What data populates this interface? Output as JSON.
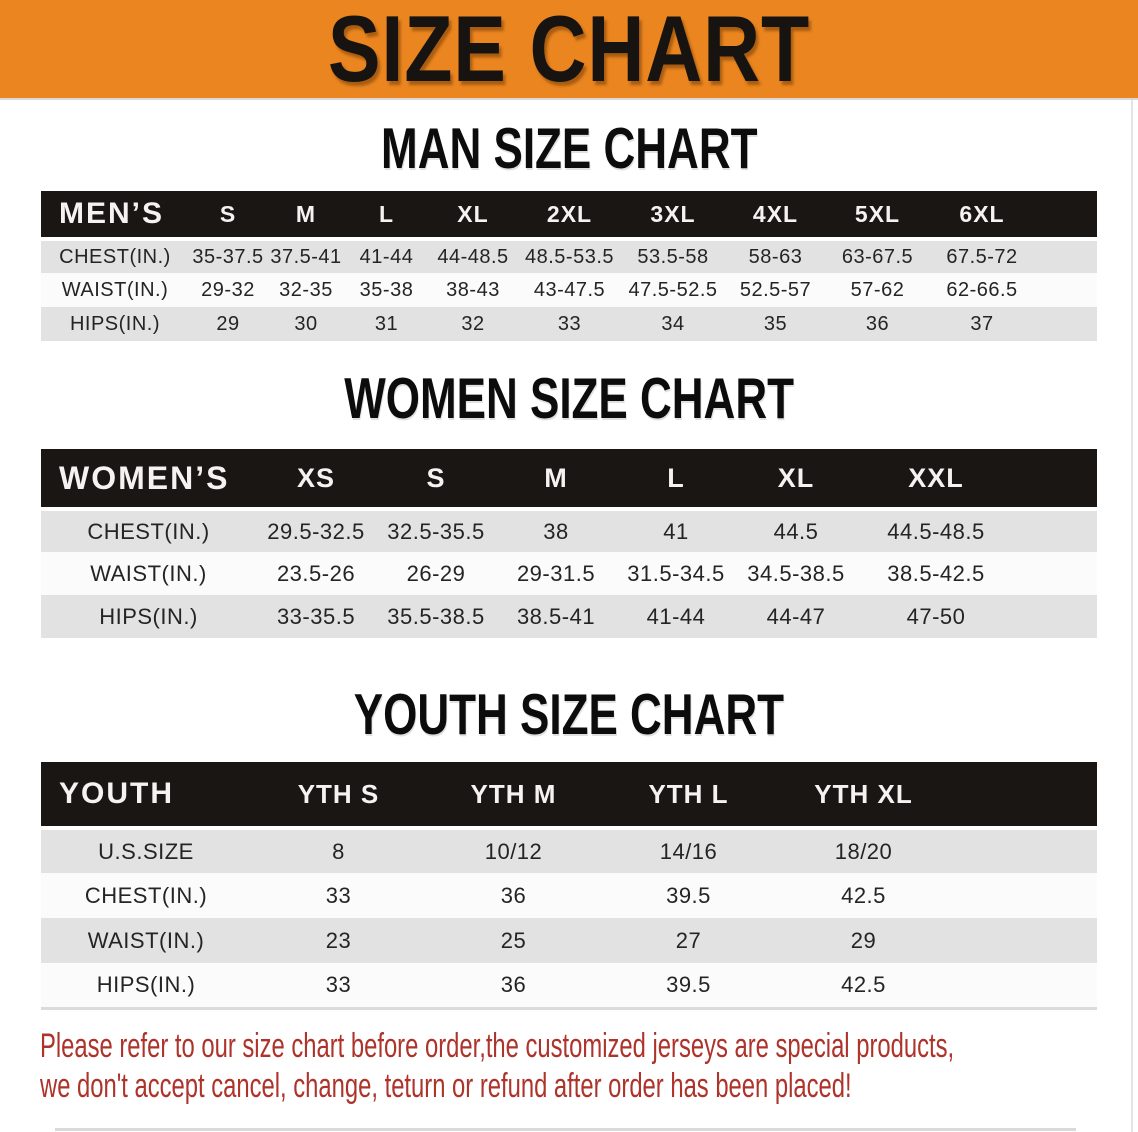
{
  "banner": {
    "title": "SIZE CHART",
    "bg_color": "#EA851F",
    "title_color": "#171310"
  },
  "colors": {
    "header_bar": "#191613",
    "stripe_gray": "#E2E2E2",
    "stripe_white": "#FBFBFB",
    "disclaimer_red": "#AD332B"
  },
  "sections": [
    {
      "title": "MAN SIZE CHART",
      "group_label": "MEN’S",
      "sizes": [
        "S",
        "M",
        "L",
        "XL",
        "2XL",
        "3XL",
        "4XL",
        "5XL",
        "6XL"
      ],
      "rows": [
        {
          "label": "CHEST(IN.)",
          "values": [
            "35-37.5",
            "37.5-41",
            "41-44",
            "44-48.5",
            "48.5-53.5",
            "53.5-58",
            "58-63",
            "63-67.5",
            "67.5-72"
          ]
        },
        {
          "label": "WAIST(IN.)",
          "values": [
            "29-32",
            "32-35",
            "35-38",
            "38-43",
            "43-47.5",
            "47.5-52.5",
            "52.5-57",
            "57-62",
            "62-66.5"
          ]
        },
        {
          "label": "HIPS(IN.)",
          "values": [
            "29",
            "30",
            "31",
            "32",
            "33",
            "34",
            "35",
            "36",
            "37"
          ]
        }
      ]
    },
    {
      "title": "WOMEN SIZE CHART",
      "group_label": "WOMEN’S",
      "sizes": [
        "XS",
        "S",
        "M",
        "L",
        "XL",
        "XXL"
      ],
      "rows": [
        {
          "label": "CHEST(IN.)",
          "values": [
            "29.5-32.5",
            "32.5-35.5",
            "38",
            "41",
            "44.5",
            "44.5-48.5"
          ]
        },
        {
          "label": "WAIST(IN.)",
          "values": [
            "23.5-26",
            "26-29",
            "29-31.5",
            "31.5-34.5",
            "34.5-38.5",
            "38.5-42.5"
          ]
        },
        {
          "label": "HIPS(IN.)",
          "values": [
            "33-35.5",
            "35.5-38.5",
            "38.5-41",
            "41-44",
            "44-47",
            "47-50"
          ]
        }
      ]
    },
    {
      "title": "YOUTH SIZE CHART",
      "group_label": "YOUTH",
      "sizes": [
        "YTH S",
        "YTH M",
        "YTH L",
        "YTH XL"
      ],
      "rows": [
        {
          "label": "U.S.SIZE",
          "values": [
            "8",
            "10/12",
            "14/16",
            "18/20"
          ]
        },
        {
          "label": "CHEST(IN.)",
          "values": [
            "33",
            "36",
            "39.5",
            "42.5"
          ]
        },
        {
          "label": "WAIST(IN.)",
          "values": [
            "23",
            "25",
            "27",
            "29"
          ]
        },
        {
          "label": "HIPS(IN.)",
          "values": [
            "33",
            "36",
            "39.5",
            "42.5"
          ]
        }
      ]
    }
  ],
  "disclaimer": {
    "line1": "Please refer to our size chart before order,the customized jerseys are special products,",
    "line2": "we don't accept cancel, change, teturn or refund after order has been placed!"
  }
}
